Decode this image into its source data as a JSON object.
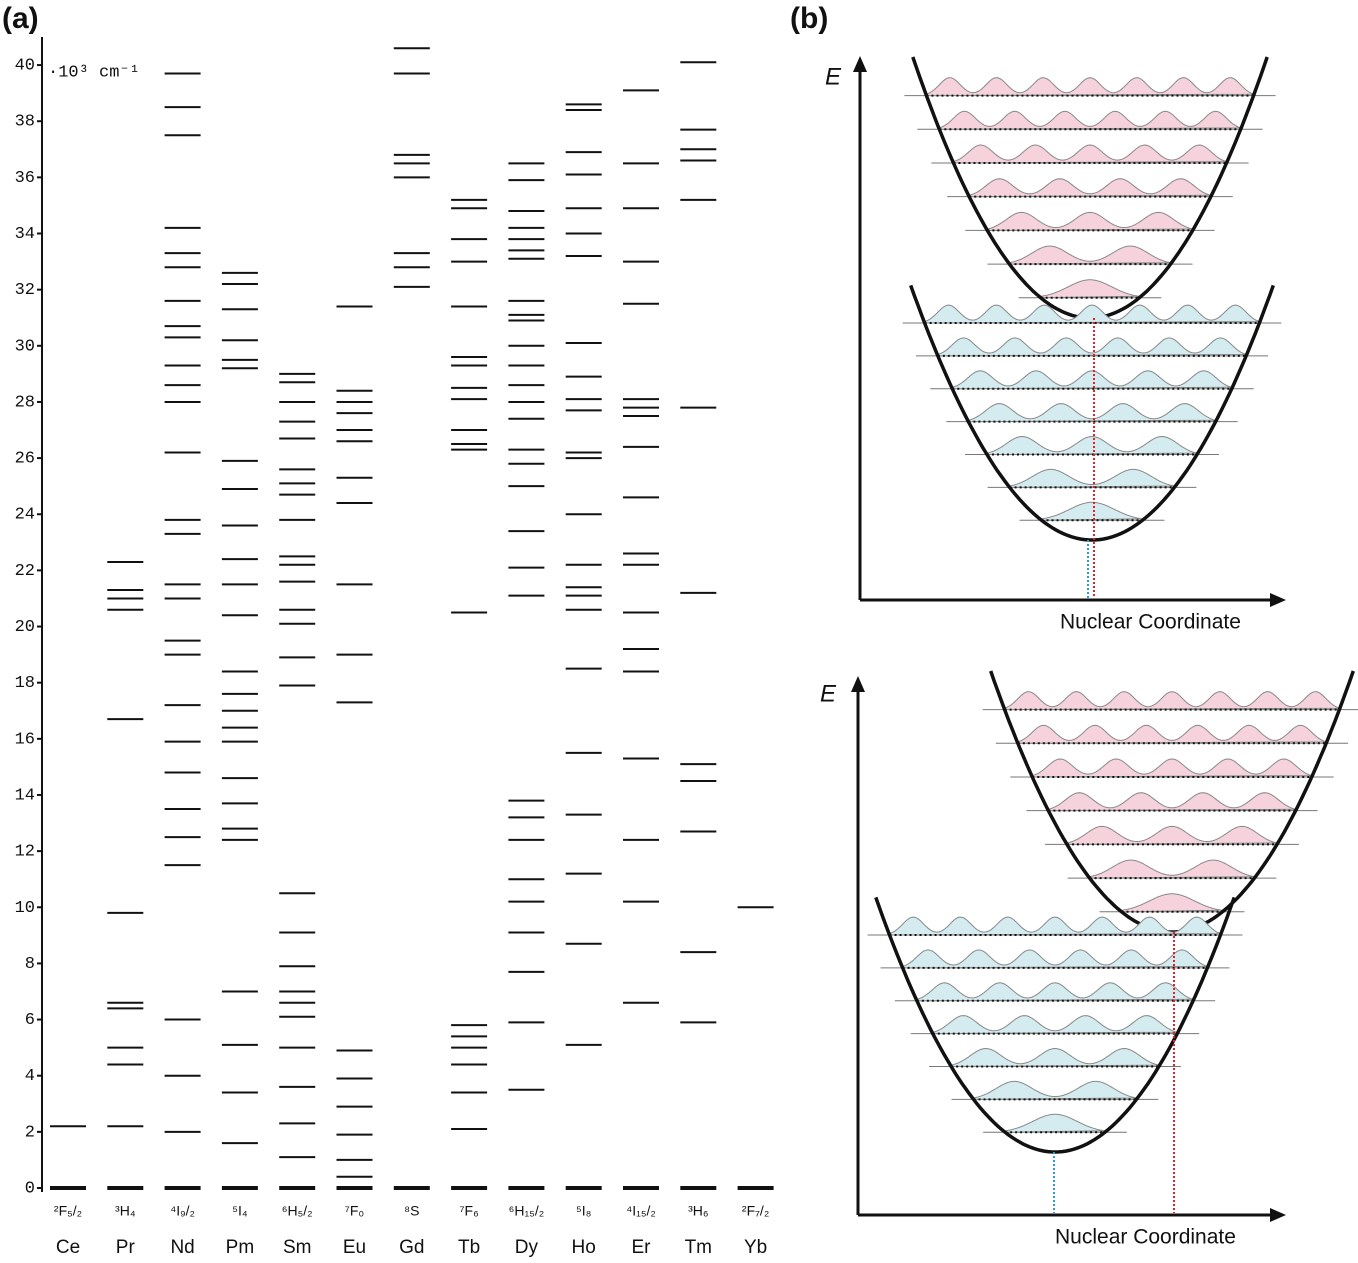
{
  "figure": {
    "panel_a": "(a)",
    "panel_b": "(b)"
  },
  "chart_data": {
    "type": "levels",
    "ylabel": "·10³ cm⁻¹",
    "ylim": [
      0,
      41
    ],
    "yticks": [
      0,
      2,
      4,
      6,
      8,
      10,
      12,
      14,
      16,
      18,
      20,
      22,
      24,
      26,
      28,
      30,
      32,
      34,
      36,
      38,
      40
    ],
    "categories": [
      "Ce",
      "Pr",
      "Nd",
      "Pm",
      "Sm",
      "Eu",
      "Gd",
      "Tb",
      "Dy",
      "Ho",
      "Er",
      "Tm",
      "Yb"
    ],
    "ground_terms": [
      "²F₅/₂",
      "³H₄",
      "⁴I₉/₂",
      "⁵I₄",
      "⁶H₅/₂",
      "⁷F₀",
      "⁸S",
      "⁷F₆",
      "⁶H₁₅/₂",
      "⁵I₈",
      "⁴I₁₅/₂",
      "³H₆",
      "²F₇/₂"
    ],
    "levels": [
      [
        0,
        2.2
      ],
      [
        0,
        2.2,
        4.4,
        5.0,
        6.4,
        6.6,
        9.8,
        16.7,
        20.6,
        21.0,
        21.3,
        22.3
      ],
      [
        0,
        2.0,
        4.0,
        6.0,
        11.5,
        12.5,
        13.5,
        14.8,
        15.9,
        17.2,
        19.0,
        19.5,
        21.0,
        21.5,
        23.3,
        23.8,
        26.2,
        28.0,
        28.6,
        29.3,
        30.3,
        30.7,
        31.6,
        32.8,
        33.3,
        34.2,
        37.5,
        38.5,
        39.7
      ],
      [
        0,
        1.6,
        3.4,
        5.1,
        7.0,
        12.4,
        12.8,
        13.7,
        14.6,
        15.9,
        16.4,
        17.0,
        17.6,
        18.4,
        20.4,
        21.5,
        22.4,
        23.6,
        24.9,
        25.9,
        29.2,
        29.5,
        30.2,
        31.3,
        32.2,
        32.6
      ],
      [
        0,
        1.1,
        2.3,
        3.6,
        5.0,
        6.1,
        6.6,
        7.0,
        7.9,
        9.1,
        10.5,
        17.9,
        18.9,
        20.1,
        20.6,
        21.6,
        22.2,
        22.5,
        23.8,
        24.7,
        25.1,
        25.6,
        26.7,
        27.3,
        28.0,
        28.7,
        29.0
      ],
      [
        0,
        0.4,
        1.0,
        1.9,
        2.9,
        3.9,
        4.9,
        17.3,
        19.0,
        21.5,
        24.4,
        25.3,
        26.6,
        27.0,
        27.6,
        28.0,
        28.4,
        31.4
      ],
      [
        0,
        32.1,
        32.8,
        33.3,
        36.0,
        36.5,
        36.8,
        39.7,
        40.6
      ],
      [
        0,
        2.1,
        3.4,
        4.4,
        5.0,
        5.4,
        5.8,
        20.5,
        26.3,
        26.5,
        27.0,
        28.1,
        28.5,
        29.3,
        29.6,
        31.4,
        33.0,
        33.8,
        34.9,
        35.2
      ],
      [
        0,
        3.5,
        5.9,
        7.7,
        9.1,
        10.2,
        11.0,
        12.4,
        13.2,
        13.8,
        21.1,
        22.1,
        23.4,
        25.0,
        25.8,
        26.3,
        27.4,
        28.0,
        28.6,
        29.3,
        30.0,
        30.9,
        31.1,
        31.6,
        33.1,
        33.4,
        33.8,
        34.2,
        34.8,
        35.9,
        36.5
      ],
      [
        0,
        5.1,
        8.7,
        11.2,
        13.3,
        15.5,
        18.5,
        20.6,
        21.1,
        21.4,
        22.2,
        24.0,
        26.0,
        26.2,
        27.7,
        28.1,
        28.9,
        30.1,
        33.2,
        34.0,
        34.9,
        36.1,
        36.9,
        38.4,
        38.6
      ],
      [
        0,
        6.6,
        10.2,
        12.4,
        15.3,
        18.4,
        19.2,
        20.5,
        22.2,
        22.6,
        24.6,
        26.4,
        27.5,
        27.8,
        28.1,
        31.5,
        33.0,
        34.9,
        36.5,
        39.1
      ],
      [
        0,
        5.9,
        8.4,
        12.7,
        14.5,
        15.1,
        21.2,
        27.8,
        35.2,
        36.6,
        37.0,
        37.7,
        40.1
      ],
      [
        0,
        10.0
      ]
    ]
  },
  "diagrams": [
    {
      "y_axis": "E",
      "x_axis": "Nuclear Coordinate"
    },
    {
      "y_axis": "E",
      "x_axis": "Nuclear Coordinate"
    }
  ]
}
